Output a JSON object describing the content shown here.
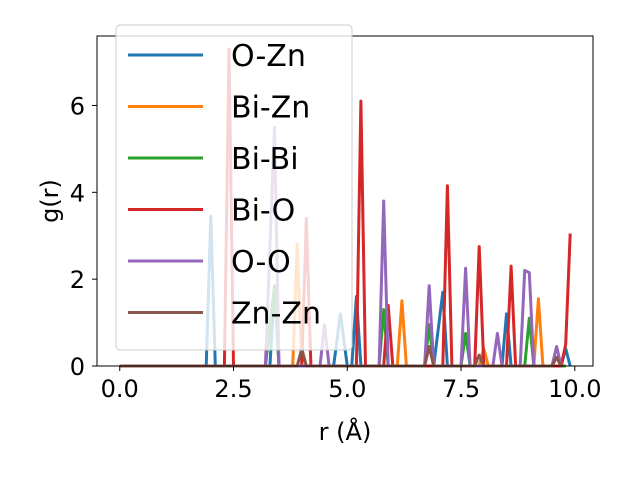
{
  "chart_data": {
    "type": "line",
    "xlabel": "r (Å)",
    "ylabel": "g(r)",
    "xlim": [
      -0.5,
      10.4
    ],
    "ylim": [
      0,
      7.6
    ],
    "xticks": [
      0.0,
      2.5,
      5.0,
      7.5,
      10.0
    ],
    "xtick_labels": [
      "0.0",
      "2.5",
      "5.0",
      "7.5",
      "10.0"
    ],
    "yticks": [
      0,
      2,
      4,
      6
    ],
    "ytick_labels": [
      "0",
      "2",
      "4",
      "6"
    ],
    "grid": false,
    "legend_position": "upper-left",
    "series": [
      {
        "name": "O-Zn",
        "color": "#1f77b4",
        "points": [
          [
            0,
            0
          ],
          [
            1.9,
            0
          ],
          [
            2.0,
            3.45
          ],
          [
            2.1,
            0
          ],
          [
            3.3,
            0
          ],
          [
            3.4,
            1.8
          ],
          [
            3.5,
            0
          ],
          [
            4.7,
            0
          ],
          [
            4.85,
            1.2
          ],
          [
            5.0,
            0
          ],
          [
            5.1,
            0
          ],
          [
            5.2,
            1.6
          ],
          [
            5.3,
            0
          ],
          [
            6.9,
            0
          ],
          [
            7.1,
            1.7
          ],
          [
            7.2,
            0
          ],
          [
            8.4,
            0
          ],
          [
            8.5,
            1.2
          ],
          [
            8.6,
            0
          ],
          [
            9.7,
            0
          ],
          [
            9.8,
            0.4
          ],
          [
            9.9,
            0
          ]
        ]
      },
      {
        "name": "Bi-Zn",
        "color": "#ff7f0e",
        "points": [
          [
            0,
            0
          ],
          [
            3.8,
            0
          ],
          [
            3.9,
            2.8
          ],
          [
            4.0,
            0
          ],
          [
            6.1,
            0
          ],
          [
            6.2,
            1.5
          ],
          [
            6.3,
            0
          ],
          [
            7.9,
            0
          ],
          [
            8.0,
            0.4
          ],
          [
            8.1,
            0
          ],
          [
            9.1,
            0
          ],
          [
            9.2,
            1.55
          ],
          [
            9.3,
            0
          ],
          [
            9.8,
            0
          ]
        ]
      },
      {
        "name": "Bi-Bi",
        "color": "#2ca02c",
        "points": [
          [
            0,
            0
          ],
          [
            3.2,
            0
          ],
          [
            3.4,
            1.85
          ],
          [
            3.5,
            0
          ],
          [
            5.7,
            0
          ],
          [
            5.8,
            1.3
          ],
          [
            5.9,
            0
          ],
          [
            6.7,
            0
          ],
          [
            6.8,
            0.95
          ],
          [
            6.9,
            0
          ],
          [
            7.5,
            0
          ],
          [
            7.6,
            0.75
          ],
          [
            7.7,
            0
          ],
          [
            8.9,
            0
          ],
          [
            9.0,
            1.1
          ],
          [
            9.1,
            0
          ],
          [
            9.8,
            0
          ]
        ]
      },
      {
        "name": "Bi-O",
        "color": "#d62728",
        "points": [
          [
            0,
            0
          ],
          [
            2.3,
            0
          ],
          [
            2.4,
            7.3
          ],
          [
            2.5,
            0
          ],
          [
            4.0,
            0
          ],
          [
            4.1,
            3.4
          ],
          [
            4.2,
            0
          ],
          [
            5.2,
            0
          ],
          [
            5.3,
            6.1
          ],
          [
            5.4,
            0
          ],
          [
            5.8,
            0
          ],
          [
            5.9,
            1.4
          ],
          [
            6.0,
            0
          ],
          [
            7.1,
            0
          ],
          [
            7.2,
            4.15
          ],
          [
            7.3,
            0
          ],
          [
            7.8,
            0
          ],
          [
            7.9,
            2.75
          ],
          [
            8.0,
            0
          ],
          [
            8.5,
            0
          ],
          [
            8.6,
            2.3
          ],
          [
            8.7,
            0
          ],
          [
            9.7,
            0
          ],
          [
            9.8,
            0.5
          ],
          [
            9.9,
            3.05
          ]
        ]
      },
      {
        "name": "O-O",
        "color": "#9467bd",
        "points": [
          [
            0,
            0
          ],
          [
            3.2,
            0
          ],
          [
            3.4,
            5.5
          ],
          [
            3.5,
            0
          ],
          [
            4.4,
            0
          ],
          [
            4.5,
            0.95
          ],
          [
            4.6,
            0
          ],
          [
            5.7,
            0
          ],
          [
            5.8,
            3.8
          ],
          [
            5.9,
            0
          ],
          [
            6.7,
            0
          ],
          [
            6.8,
            1.85
          ],
          [
            6.9,
            0
          ],
          [
            7.5,
            0
          ],
          [
            7.6,
            2.25
          ],
          [
            7.7,
            0
          ],
          [
            8.2,
            0
          ],
          [
            8.3,
            0.75
          ],
          [
            8.4,
            0
          ],
          [
            8.8,
            0
          ],
          [
            8.9,
            2.2
          ],
          [
            9.0,
            2.15
          ],
          [
            9.1,
            0
          ],
          [
            9.5,
            0
          ],
          [
            9.6,
            0.45
          ],
          [
            9.7,
            0
          ]
        ]
      },
      {
        "name": "Zn-Zn",
        "color": "#8c564b",
        "points": [
          [
            0,
            0
          ],
          [
            3.9,
            0
          ],
          [
            4.0,
            0.4
          ],
          [
            4.1,
            0
          ],
          [
            6.7,
            0
          ],
          [
            6.8,
            0.45
          ],
          [
            6.9,
            0
          ],
          [
            7.8,
            0
          ],
          [
            7.9,
            0.25
          ],
          [
            8.0,
            0
          ],
          [
            9.5,
            0
          ],
          [
            9.6,
            0.2
          ],
          [
            9.7,
            0
          ]
        ]
      }
    ]
  }
}
